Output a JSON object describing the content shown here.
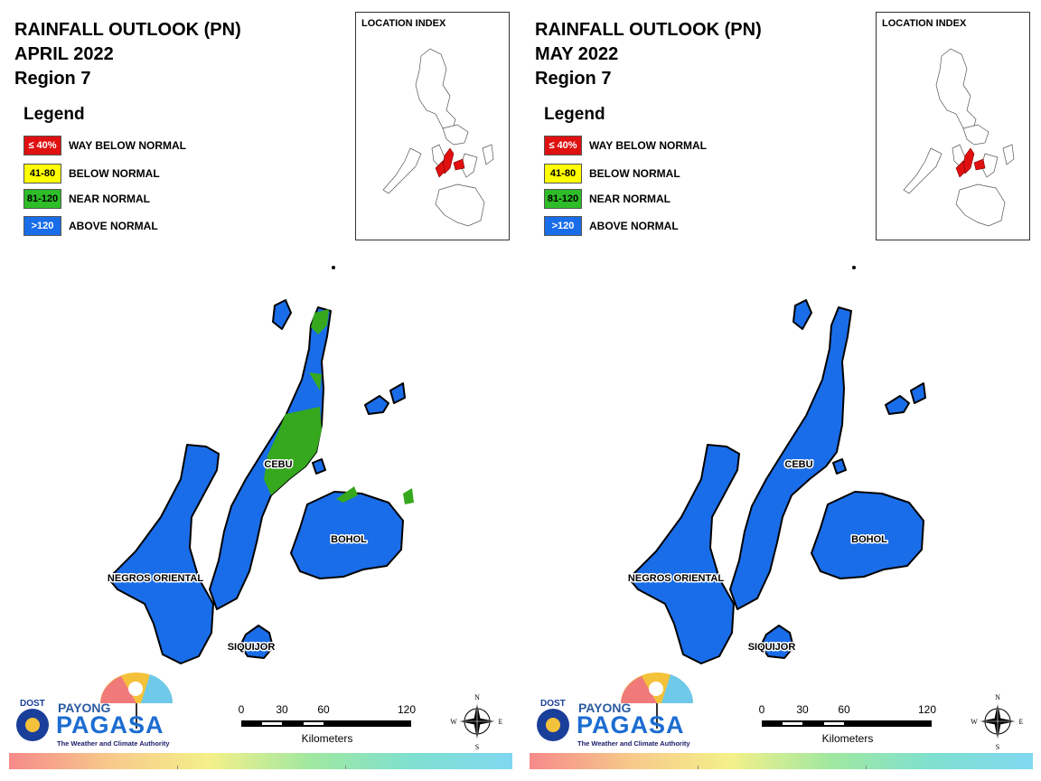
{
  "legend": {
    "title": "Legend",
    "items": [
      {
        "range": "≤ 40%",
        "label": "WAY BELOW NORMAL",
        "color": "#e01010",
        "text_color": "#ffffff"
      },
      {
        "range": "41-80",
        "label": "BELOW NORMAL",
        "color": "#ffff00",
        "text_color": "#000000"
      },
      {
        "range": "81-120",
        "label": "NEAR NORMAL",
        "color": "#2ebd28",
        "text_color": "#000000"
      },
      {
        "range": ">120",
        "label": "ABOVE NORMAL",
        "color": "#1a6de8",
        "text_color": "#ffffff"
      }
    ]
  },
  "location_index_title": "LOCATION INDEX",
  "place_labels": {
    "cebu": "CEBU",
    "bohol": "BOHOL",
    "negros": "NEGROS ORIENTAL",
    "siquijor": "SIQUIJOR"
  },
  "scale": {
    "ticks": [
      "0",
      "30",
      "60",
      "120"
    ],
    "unit": "Kilometers"
  },
  "compass": {
    "n": "N",
    "s": "S",
    "e": "E",
    "w": "W"
  },
  "logo": {
    "dost": "DOST",
    "payong": "PAYONG",
    "pagasa": "PAGASA",
    "tagline": "The Weather and Climate Authority"
  },
  "colors": {
    "above_normal": "#1a6de8",
    "near_normal": "#35a81e",
    "highlight": "#e01010"
  },
  "panels": [
    {
      "title": "RAINFALL OUTLOOK (PN)",
      "month": "APRIL 2022",
      "region": "Region 7",
      "categories_shown": [
        "ABOVE NORMAL",
        "NEAR NORMAL"
      ]
    },
    {
      "title": "RAINFALL OUTLOOK (PN)",
      "month": "MAY 2022",
      "region": "Region 7",
      "categories_shown": [
        "ABOVE NORMAL"
      ]
    }
  ]
}
